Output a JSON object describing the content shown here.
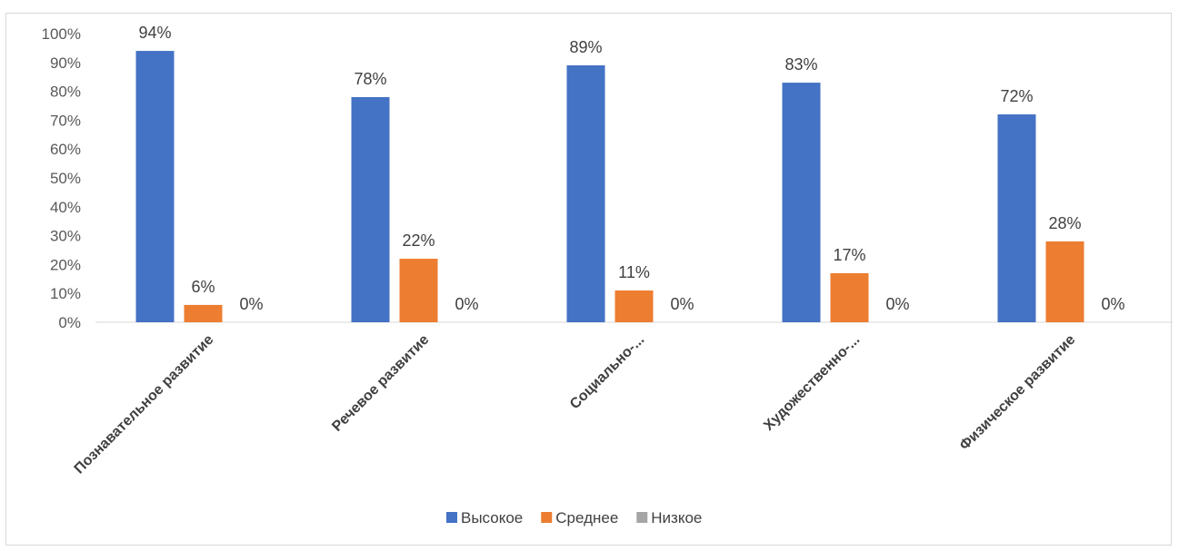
{
  "chart_data": {
    "type": "bar",
    "categories": [
      "Познавательное развитие",
      "Речевое развитие",
      "Социально-...",
      "Художественно-...",
      "Физическое развитие"
    ],
    "series": [
      {
        "name": "Высокое",
        "values": [
          94,
          78,
          89,
          83,
          72
        ],
        "color": "#4472c4"
      },
      {
        "name": "Среднее",
        "values": [
          6,
          22,
          11,
          17,
          28
        ],
        "color": "#ed7d31"
      },
      {
        "name": "Низкое",
        "values": [
          0,
          0,
          0,
          0,
          0
        ],
        "color": "#a5a5a5"
      }
    ],
    "data_labels": [
      [
        "94%",
        "78%",
        "89%",
        "83%",
        "72%"
      ],
      [
        "6%",
        "22%",
        "11%",
        "17%",
        "28%"
      ],
      [
        "0%",
        "0%",
        "0%",
        "0%",
        "0%"
      ]
    ],
    "y_tick_labels": [
      "0%",
      "10%",
      "20%",
      "30%",
      "40%",
      "50%",
      "60%",
      "70%",
      "80%",
      "90%",
      "100%"
    ],
    "ylim": [
      0,
      100
    ],
    "grid": false,
    "legend_position": "bottom",
    "title": "",
    "xlabel": "",
    "ylabel": ""
  }
}
